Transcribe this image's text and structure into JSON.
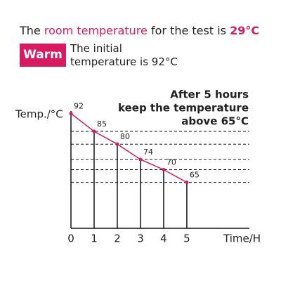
{
  "header": {
    "title_parts": [
      "The ",
      "room temperature",
      " for the test is ",
      "29°C"
    ],
    "badge": "Warm",
    "note": [
      "The initial",
      "temperature is 92°C"
    ]
  },
  "chart_data": {
    "type": "line",
    "x": [
      0,
      1,
      2,
      3,
      4,
      5
    ],
    "series": [
      {
        "color": "#d81b60",
        "values": [
          92,
          85,
          80,
          74,
          70,
          65
        ]
      }
    ],
    "xlim": [
      0,
      7.7
    ],
    "xticks": [
      0,
      1,
      2,
      3,
      4,
      5
    ],
    "ylim": [
      47,
      93
    ],
    "x_label": "Time/H",
    "y_label": "Temp./°C",
    "annotation": [
      "After 5 hours",
      "keep the temperature",
      "above 65°C"
    ]
  }
}
